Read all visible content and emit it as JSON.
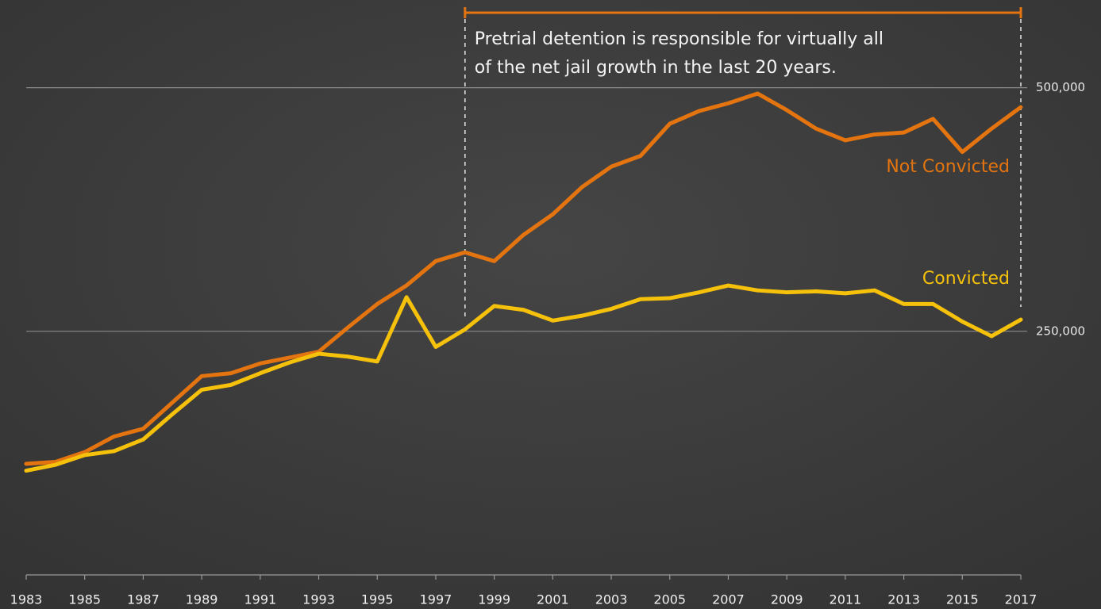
{
  "chart_data": {
    "type": "line",
    "x": [
      1983,
      1984,
      1985,
      1986,
      1987,
      1988,
      1989,
      1990,
      1991,
      1992,
      1993,
      1994,
      1995,
      1996,
      1997,
      1998,
      1999,
      2000,
      2001,
      2002,
      2003,
      2004,
      2005,
      2006,
      2007,
      2008,
      2009,
      2010,
      2011,
      2012,
      2013,
      2014,
      2015,
      2016,
      2017
    ],
    "xlim": [
      1983,
      2017
    ],
    "xticks": [
      1983,
      1985,
      1987,
      1989,
      1991,
      1993,
      1995,
      1997,
      1999,
      2001,
      2003,
      2005,
      2007,
      2009,
      2011,
      2013,
      2015,
      2017
    ],
    "ylim": [
      0,
      590000
    ],
    "yticks": [
      {
        "value": 250000,
        "label": "250,000"
      },
      {
        "value": 500000,
        "label": "500,000"
      }
    ],
    "grid": true,
    "series": [
      {
        "name": "Not Convicted",
        "color": "#e3740f",
        "values": [
          114000,
          116000,
          126000,
          142000,
          150000,
          177000,
          204000,
          207000,
          217000,
          223000,
          229000,
          254000,
          278000,
          297000,
          322000,
          331000,
          322000,
          349000,
          370000,
          398000,
          419000,
          430000,
          463000,
          476000,
          484000,
          494000,
          477000,
          458000,
          446000,
          452000,
          454000,
          468000,
          434000,
          458000,
          480000
        ]
      },
      {
        "name": "Convicted",
        "color": "#f5c10a",
        "values": [
          107000,
          113000,
          123000,
          127000,
          139000,
          165000,
          190000,
          195000,
          207000,
          218000,
          227000,
          224000,
          219000,
          285000,
          234000,
          252000,
          276000,
          272000,
          261000,
          266000,
          273000,
          283000,
          284000,
          290000,
          297000,
          292000,
          290000,
          291000,
          289000,
          292000,
          278000,
          278000,
          260000,
          245000,
          262000
        ]
      }
    ],
    "annotation": {
      "lines": [
        "Pretrial detention is responsible for virtually all",
        "of the net jail growth in the last 20 years."
      ],
      "x_start": 1998,
      "x_end": 2017,
      "color": "#e3740f"
    }
  }
}
